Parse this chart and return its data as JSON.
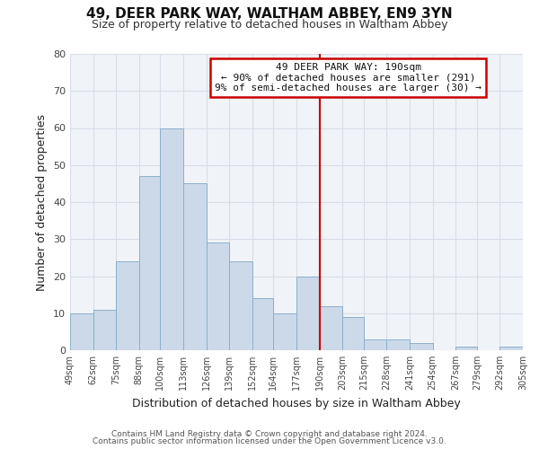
{
  "title": "49, DEER PARK WAY, WALTHAM ABBEY, EN9 3YN",
  "subtitle": "Size of property relative to detached houses in Waltham Abbey",
  "xlabel": "Distribution of detached houses by size in Waltham Abbey",
  "ylabel": "Number of detached properties",
  "bin_edges": [
    49,
    62,
    75,
    88,
    100,
    113,
    126,
    139,
    152,
    164,
    177,
    190,
    203,
    215,
    228,
    241,
    254,
    267,
    279,
    292,
    305
  ],
  "bar_heights": [
    10,
    11,
    24,
    47,
    60,
    45,
    29,
    24,
    14,
    10,
    20,
    12,
    9,
    3,
    3,
    2,
    0,
    1,
    0,
    1
  ],
  "bar_color": "#ccd9e8",
  "bar_edgecolor": "#8ab0cc",
  "vline_x": 190,
  "vline_color": "#cc0000",
  "ylim": [
    0,
    80
  ],
  "yticks": [
    0,
    10,
    20,
    30,
    40,
    50,
    60,
    70,
    80
  ],
  "annotation_title": "49 DEER PARK WAY: 190sqm",
  "annotation_line1": "← 90% of detached houses are smaller (291)",
  "annotation_line2": "9% of semi-detached houses are larger (30) →",
  "annotation_box_facecolor": "#ffffff",
  "annotation_box_edgecolor": "#cc0000",
  "footer1": "Contains HM Land Registry data © Crown copyright and database right 2024.",
  "footer2": "Contains public sector information licensed under the Open Government Licence v3.0.",
  "background_color": "#ffffff",
  "plot_bg_color": "#f0f4f8",
  "grid_color": "#d8dde8",
  "tick_labels": [
    "49sqm",
    "62sqm",
    "75sqm",
    "88sqm",
    "100sqm",
    "113sqm",
    "126sqm",
    "139sqm",
    "152sqm",
    "164sqm",
    "177sqm",
    "190sqm",
    "203sqm",
    "215sqm",
    "228sqm",
    "241sqm",
    "254sqm",
    "267sqm",
    "279sqm",
    "292sqm",
    "305sqm"
  ]
}
